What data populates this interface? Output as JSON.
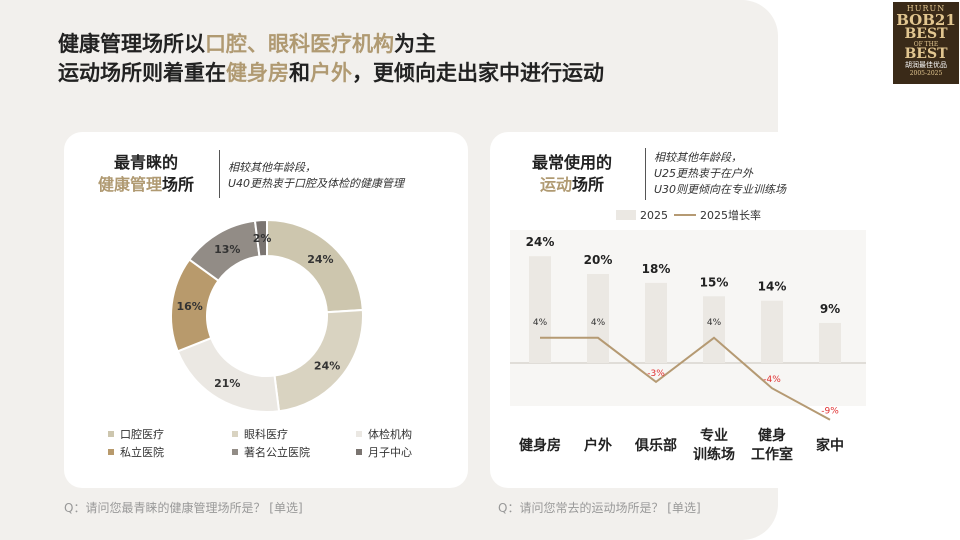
{
  "headline": {
    "line1_a": "健康管理场所以",
    "line1_b": "口腔、眼科医疗机构",
    "line1_c": "为主",
    "line2_a": "运动场所则着重在",
    "line2_b": "健身房",
    "line2_c": "和",
    "line2_d": "户外",
    "line2_e": "，更倾向走出家中进行运动"
  },
  "logo": {
    "l1": "HURUN",
    "l2": "BOB21",
    "l3": "BEST",
    "l3b": "OF THE",
    "l3c": "BEST",
    "l4": "胡润最佳优品",
    "l5": "2005-2025"
  },
  "left_card": {
    "title_line1": "最青睐的",
    "title_hl": "健康管理",
    "title_rest": "场所",
    "note_line1": "相较其他年龄段，",
    "note_line2": "U40更热衷于口腔及体检的健康管理"
  },
  "right_card": {
    "title_line1": "最常使用的",
    "title_hl": "运动",
    "title_rest": "场所",
    "note_line1": "相较其他年龄段，",
    "note_line2": "U25更热衷于在户外",
    "note_line3": "U30则更倾向在专业训练场"
  },
  "questions": {
    "left": "Q：请问您最青睐的健康管理场所是？ [单选]",
    "right": "Q：请问您常去的运动场所是？ [单选]"
  },
  "chart_data": [
    {
      "type": "pie",
      "title": "",
      "categories": [
        "口腔医疗",
        "眼科医疗",
        "体检机构",
        "私立医院",
        "著名公立医院",
        "月子中心"
      ],
      "values": [
        24,
        24,
        21,
        16,
        13,
        2
      ],
      "labels": [
        "24%",
        "24%",
        "21%",
        "16%",
        "13%",
        "2%"
      ],
      "colors": [
        "#cdc6ae",
        "#d9d3c1",
        "#ebe8e3",
        "#b89a6c",
        "#928c86",
        "#7a7470"
      ],
      "legend": "bottom"
    },
    {
      "type": "bar",
      "title": "",
      "categories": [
        "健身房",
        "户外",
        "俱乐部",
        "专业训练场",
        "健身工作室",
        "家中"
      ],
      "category_lines": [
        [
          "健身房"
        ],
        [
          "户外"
        ],
        [
          "俱乐部"
        ],
        [
          "专业",
          "训练场"
        ],
        [
          "健身",
          "工作室"
        ],
        [
          "家中"
        ]
      ],
      "series": [
        {
          "name": "2025",
          "values": [
            24,
            20,
            18,
            15,
            14,
            9
          ],
          "labels": [
            "24%",
            "20%",
            "18%",
            "15%",
            "14%",
            "9%"
          ],
          "color": "#ebe8e3"
        },
        {
          "name": "2025增长率",
          "type": "line",
          "values": [
            4,
            4,
            -3,
            4,
            -4,
            -9
          ],
          "labels": [
            "4%",
            "4%",
            "-3%",
            "4%",
            "-4%",
            "-9%"
          ],
          "color": "#b59a73",
          "negative_label_color": "#e03030"
        }
      ],
      "legend": "top"
    }
  ]
}
